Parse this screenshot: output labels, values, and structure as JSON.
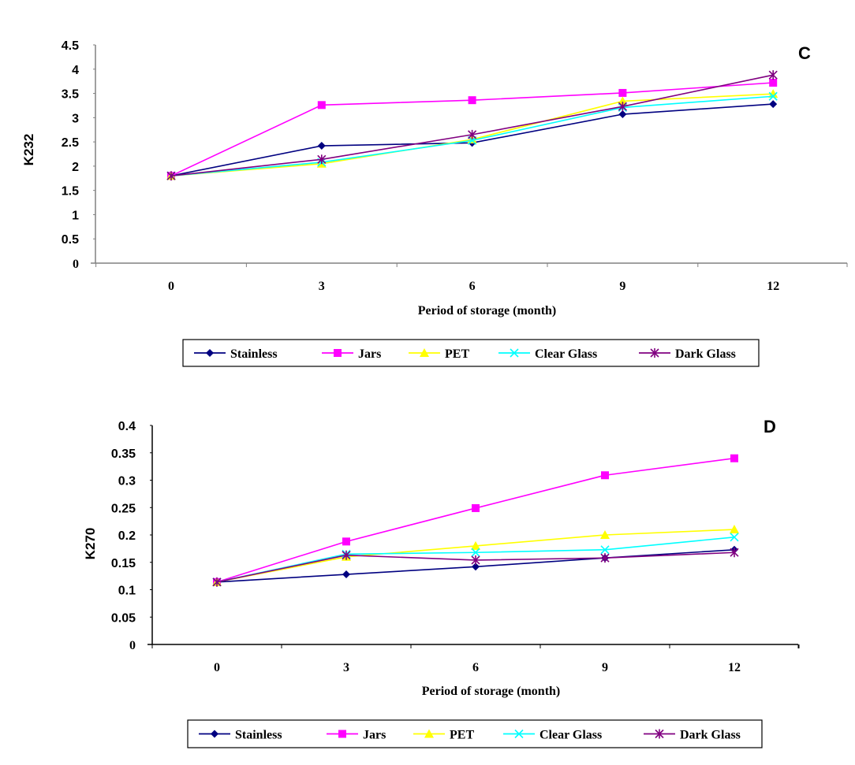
{
  "chart_data": [
    {
      "type": "line",
      "panel_label": "C",
      "title": "",
      "xlabel": "Period of storage (month)",
      "ylabel": "K232",
      "categories": [
        "0",
        "3",
        "6",
        "9",
        "12"
      ],
      "ylim": [
        0,
        4.5
      ],
      "yticks": [
        "0",
        "0.5",
        "1",
        "1.5",
        "2",
        "2.5",
        "3",
        "3.5",
        "4",
        "4.5"
      ],
      "grid": false,
      "legend_position": "bottom",
      "series": [
        {
          "name": "Stainless",
          "color": "#000080",
          "marker": "diamond",
          "values": [
            1.8,
            2.42,
            2.48,
            3.07,
            3.28
          ]
        },
        {
          "name": "Jars",
          "color": "#FF00FF",
          "marker": "square",
          "values": [
            1.8,
            3.26,
            3.36,
            3.51,
            3.72
          ]
        },
        {
          "name": "PET",
          "color": "#FFFF00",
          "marker": "triangle",
          "values": [
            1.8,
            2.05,
            2.55,
            3.34,
            3.49
          ]
        },
        {
          "name": "Clear Glass",
          "color": "#00FFFF",
          "marker": "x",
          "values": [
            1.8,
            2.08,
            2.53,
            3.21,
            3.44
          ]
        },
        {
          "name": "Dark Glass",
          "color": "#800080",
          "marker": "star",
          "values": [
            1.8,
            2.14,
            2.65,
            3.23,
            3.88
          ]
        }
      ]
    },
    {
      "type": "line",
      "panel_label": "D",
      "title": "",
      "xlabel": "Period of storage (month)",
      "ylabel": "K270",
      "categories": [
        "0",
        "3",
        "6",
        "9",
        "12"
      ],
      "ylim": [
        0,
        0.4
      ],
      "yticks": [
        "0",
        "0.05",
        "0.1",
        "0.15",
        "0.2",
        "0.25",
        "0.3",
        "0.35",
        "0.4"
      ],
      "grid": false,
      "legend_position": "bottom",
      "series": [
        {
          "name": "Stainless",
          "color": "#000080",
          "marker": "diamond",
          "values": [
            0.114,
            0.128,
            0.142,
            0.158,
            0.173
          ]
        },
        {
          "name": "Jars",
          "color": "#FF00FF",
          "marker": "square",
          "values": [
            0.114,
            0.188,
            0.249,
            0.309,
            0.34
          ]
        },
        {
          "name": "PET",
          "color": "#FFFF00",
          "marker": "triangle",
          "values": [
            0.114,
            0.16,
            0.18,
            0.2,
            0.21
          ]
        },
        {
          "name": "Clear Glass",
          "color": "#00FFFF",
          "marker": "x",
          "values": [
            0.114,
            0.165,
            0.168,
            0.173,
            0.196
          ]
        },
        {
          "name": "Dark Glass",
          "color": "#800080",
          "marker": "star",
          "values": [
            0.114,
            0.163,
            0.154,
            0.158,
            0.168
          ]
        }
      ]
    }
  ]
}
